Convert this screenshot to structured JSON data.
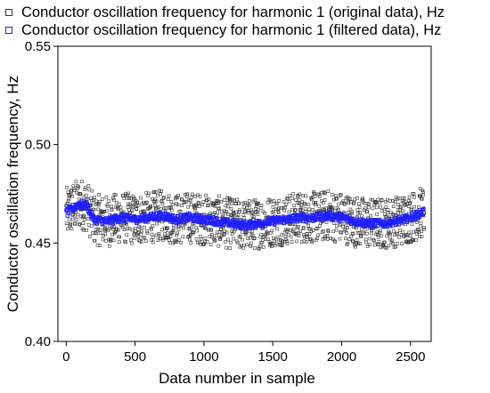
{
  "chart_data": {
    "type": "scatter",
    "title": "",
    "xlabel": "Data number in sample",
    "ylabel": "Conductor oscillation frequency, Hz",
    "xlim": [
      -60,
      2650
    ],
    "ylim": [
      0.4,
      0.55
    ],
    "xticks": [
      0,
      500,
      1000,
      1500,
      2000,
      2500
    ],
    "yticks": [
      0.4,
      0.45,
      0.5,
      0.55
    ],
    "xtick_labels": [
      "0",
      "500",
      "1000",
      "1500",
      "2000",
      "2500"
    ],
    "ytick_labels": [
      "0.40",
      "0.45",
      "0.50",
      "0.55"
    ],
    "legend_position": "top",
    "n_points": 2600,
    "series": [
      {
        "name": "Conductor oscillation frequency for harmonic 1 (original data), Hz",
        "marker": "hollow-square",
        "color": "#333333",
        "x_range": [
          0,
          2600
        ],
        "y_center": 0.462,
        "y_spread": [
          0.45,
          0.475
        ]
      },
      {
        "name": "Conductor oscillation frequency for harmonic 1 (filtered data), Hz",
        "marker": "hollow-square",
        "color": "#1f1fff",
        "x": [
          0,
          50,
          100,
          150,
          200,
          300,
          400,
          500,
          600,
          700,
          800,
          900,
          1000,
          1100,
          1200,
          1300,
          1400,
          1500,
          1600,
          1700,
          1800,
          1900,
          2000,
          2100,
          2200,
          2300,
          2400,
          2500,
          2600
        ],
        "y": [
          0.465,
          0.468,
          0.47,
          0.469,
          0.462,
          0.461,
          0.463,
          0.462,
          0.463,
          0.464,
          0.462,
          0.463,
          0.462,
          0.461,
          0.46,
          0.459,
          0.46,
          0.461,
          0.462,
          0.463,
          0.463,
          0.464,
          0.463,
          0.461,
          0.46,
          0.46,
          0.461,
          0.463,
          0.466
        ]
      }
    ]
  },
  "colors": {
    "original": "#333333",
    "filtered": "#1f1fff",
    "axis": "#000000"
  }
}
